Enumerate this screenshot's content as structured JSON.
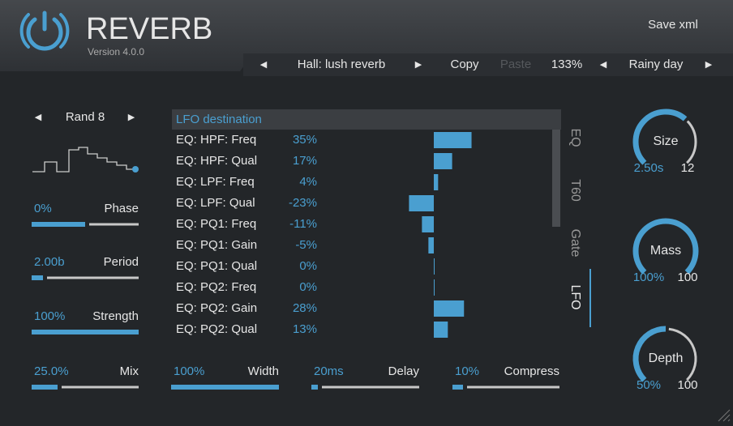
{
  "header": {
    "title": "REVERB",
    "version": "Version 4.0.0",
    "save": "Save xml"
  },
  "preset_bar": {
    "preset": "Hall: lush reverb",
    "copy": "Copy",
    "paste": "Paste",
    "zoom": "133%",
    "style": "Rainy day"
  },
  "lfo": {
    "shape": "Rand 8"
  },
  "left_controls": [
    {
      "value": "0%",
      "label": "Phase"
    },
    {
      "value": "2.00b",
      "label": "Period"
    },
    {
      "value": "100%",
      "label": "Strength"
    },
    {
      "value": "25.0%",
      "label": "Mix"
    }
  ],
  "bottom_controls": [
    {
      "value": "100%",
      "label": "Width"
    },
    {
      "value": "20ms",
      "label": "Delay"
    },
    {
      "value": "10%",
      "label": "Compress"
    }
  ],
  "table": {
    "title": "LFO destination",
    "rows": [
      {
        "name": "EQ: HPF: Freq",
        "value": 35,
        "label": "35%"
      },
      {
        "name": "EQ: HPF: Qual",
        "value": 17,
        "label": "17%"
      },
      {
        "name": "EQ: LPF: Freq",
        "value": 4,
        "label": "4%"
      },
      {
        "name": "EQ: LPF: Qual",
        "value": -23,
        "label": "-23%"
      },
      {
        "name": "EQ: PQ1: Freq",
        "value": -11,
        "label": "-11%"
      },
      {
        "name": "EQ: PQ1: Gain",
        "value": -5,
        "label": "-5%"
      },
      {
        "name": "EQ: PQ1: Qual",
        "value": 0,
        "label": "0%"
      },
      {
        "name": "EQ: PQ2: Freq",
        "value": 0,
        "label": "0%"
      },
      {
        "name": "EQ: PQ2: Gain",
        "value": 28,
        "label": "28%"
      },
      {
        "name": "EQ: PQ2: Qual",
        "value": 13,
        "label": "13%"
      }
    ]
  },
  "tabs": [
    "EQ",
    "T60",
    "Gate",
    "LFO"
  ],
  "knobs": [
    {
      "name": "Size",
      "value": "2.50s",
      "max": "12"
    },
    {
      "name": "Mass",
      "value": "100%",
      "max": "100"
    },
    {
      "name": "Depth",
      "value": "50%",
      "max": "100"
    }
  ]
}
